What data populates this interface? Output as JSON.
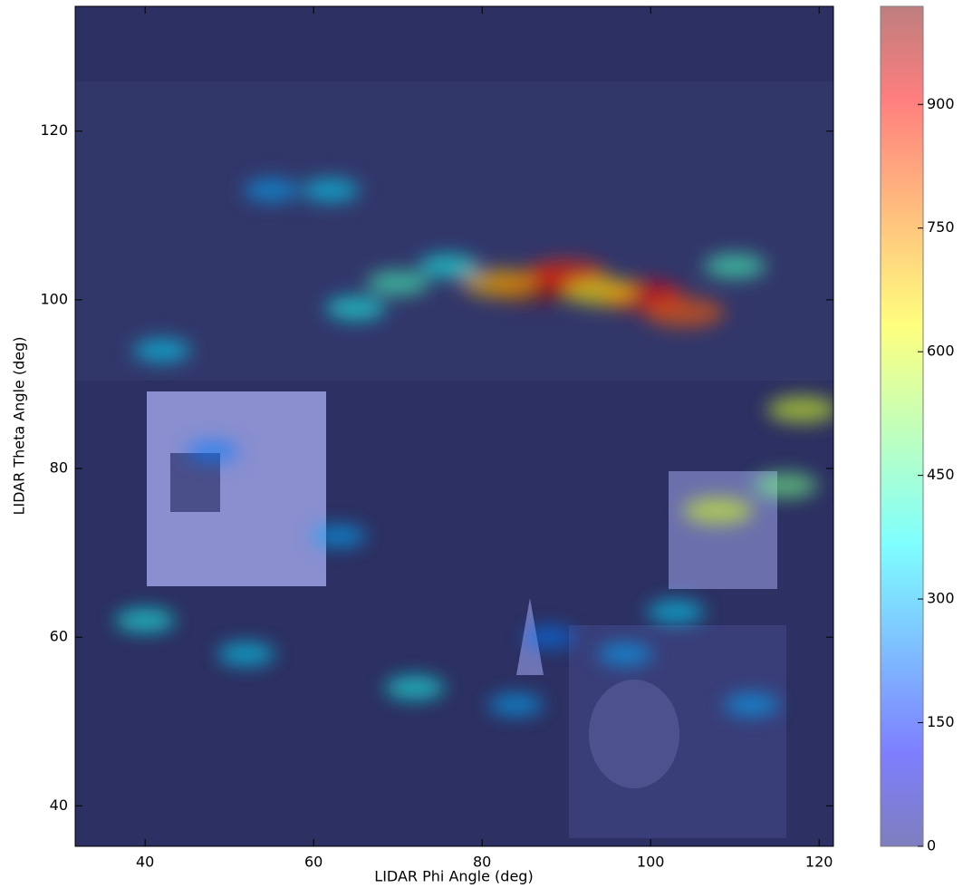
{
  "chart_data": {
    "type": "heatmap",
    "xlabel": "LIDAR Phi Angle (deg)",
    "ylabel": "LIDAR Theta Angle (deg)",
    "xlim": [
      31.7,
      121.7
    ],
    "xticks": [
      40,
      60,
      80,
      100,
      120
    ],
    "ylim": [
      35.2,
      134.8
    ],
    "yticks": [
      40,
      60,
      80,
      100,
      120
    ],
    "colorbar_lim": [
      0,
      1019
    ],
    "colorbar_ticks": [
      0,
      150,
      300,
      450,
      600,
      750,
      900
    ],
    "colormap": "jet",
    "x": [
      86,
      90,
      82,
      99,
      104,
      94,
      76,
      70,
      65,
      110,
      118,
      116,
      108,
      62,
      55,
      42,
      40,
      52,
      72,
      63,
      88,
      97,
      84,
      112,
      103,
      48
    ],
    "y": [
      101.5,
      103,
      102,
      100.5,
      98.5,
      101,
      104,
      102,
      99,
      104,
      87,
      78,
      75,
      113,
      113,
      94,
      62,
      58,
      54,
      72,
      60,
      58,
      52,
      52,
      63,
      82
    ],
    "values": [
      1000,
      850,
      700,
      900,
      800,
      650,
      400,
      450,
      400,
      450,
      600,
      500,
      600,
      350,
      300,
      350,
      400,
      350,
      400,
      300,
      250,
      300,
      300,
      300,
      350,
      250
    ]
  }
}
